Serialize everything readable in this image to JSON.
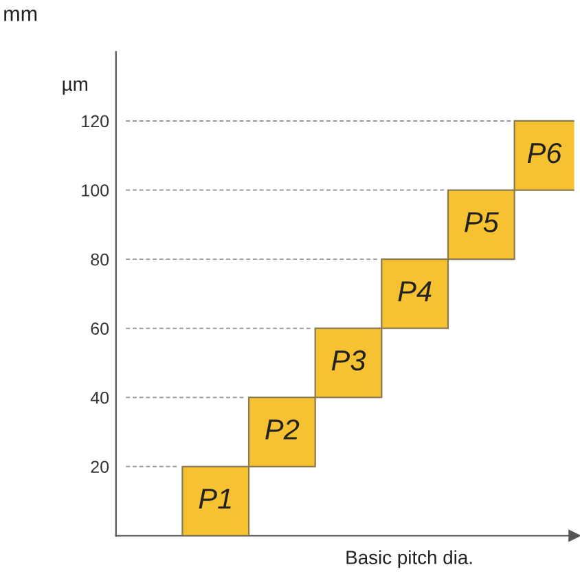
{
  "chart_data": {
    "type": "bar",
    "ylabel": "µm",
    "xlabel": "Basic pitch dia.",
    "annotations": [
      "mm"
    ],
    "categories": [
      null,
      null,
      null,
      null,
      null,
      null
    ],
    "base": [
      0,
      20,
      40,
      60,
      80,
      100
    ],
    "values": [
      20,
      20,
      20,
      20,
      20,
      20
    ],
    "value_labels": [
      "P1",
      "P2",
      "P3",
      "P4",
      "P5",
      "P6"
    ],
    "color": "#f7c232",
    "ylim": [
      0,
      140
    ],
    "yticks": [
      20,
      40,
      60,
      80,
      100,
      120
    ],
    "grid": "y",
    "tick_labels": "y",
    "legend": false
  }
}
